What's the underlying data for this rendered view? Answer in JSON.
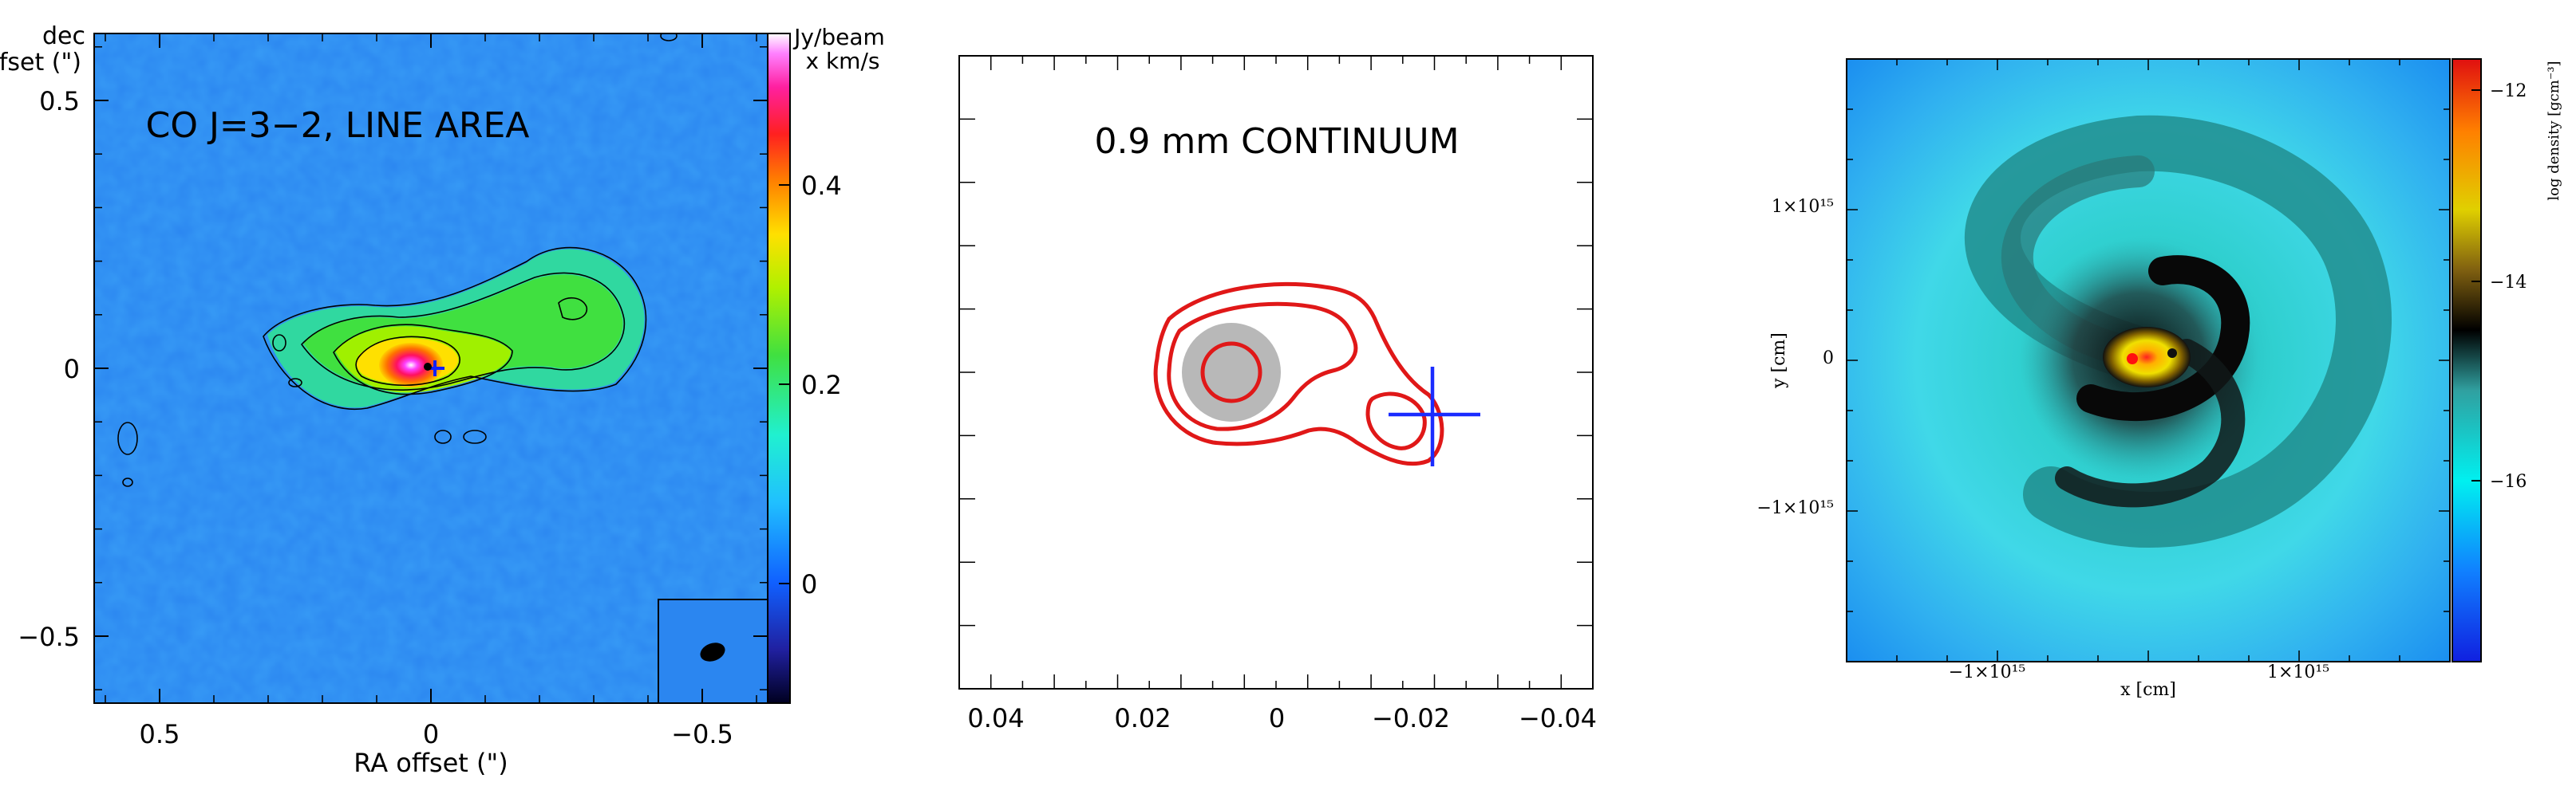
{
  "panels": {
    "left": {
      "title": "CO J=3−2, LINE AREA",
      "ylabel_line1": "dec",
      "ylabel_line2": "offset (\")",
      "xlabel": "RA offset (\")",
      "colorbar_label_line1": "Jy/beam",
      "colorbar_label_line2": "x km/s"
    },
    "middle": {
      "title": "0.9 mm CONTINUUM"
    },
    "right": {
      "xlabel": "x  [cm]",
      "ylabel": "y  [cm]",
      "colorbar_label": "log density [gcm⁻³]"
    }
  },
  "chart_data": [
    {
      "type": "heatmap",
      "title": "CO J=3−2, LINE AREA",
      "xlabel": "RA offset (\")",
      "ylabel": "dec offset (\")",
      "xlim": [
        0.63,
        -0.63
      ],
      "ylim": [
        -0.63,
        0.63
      ],
      "xticks": [
        0.5,
        0,
        -0.5
      ],
      "xtick_labels": [
        "0.5",
        "0",
        "−0.5"
      ],
      "yticks": [
        0.5,
        0,
        -0.5
      ],
      "ytick_labels": [
        "0.5",
        "0",
        "−0.5"
      ],
      "colorbar": {
        "label": "Jy/beam x km/s",
        "range": [
          -0.1,
          0.5
        ],
        "ticks": [
          0.4,
          0.2,
          0
        ],
        "tick_labels": [
          "0.4",
          "0.2",
          "0"
        ]
      },
      "features": [
        {
          "name": "emission peak",
          "x": 0.0,
          "y": 0.0,
          "peak_value": 0.45
        },
        {
          "name": "extended lobe",
          "x": -0.25,
          "y": 0.05,
          "value": 0.18
        }
      ],
      "contours": "black contours tracing emission, elongated east-west",
      "beam": "filled ellipse, lower-right corner"
    },
    {
      "type": "scatter",
      "title": "0.9 mm CONTINUUM",
      "xlim": [
        0.05,
        -0.05
      ],
      "ylim": [
        -0.05,
        0.05
      ],
      "xticks": [
        0.04,
        0.02,
        0,
        -0.02,
        -0.04
      ],
      "xtick_labels": [
        "0.04",
        "0.02",
        "0",
        "−0.02",
        "−0.04"
      ],
      "points": [
        {
          "name": "continuum peak",
          "x": 0.006,
          "y": 0.0
        },
        {
          "name": "secondary source (cross)",
          "x": -0.025,
          "y": -0.007
        }
      ],
      "contour_levels": 3,
      "contour_color": "#e01818",
      "filled_core": "gray disk at continuum peak"
    },
    {
      "type": "heatmap",
      "xlabel": "x  [cm]",
      "ylabel": "y  [cm]",
      "xlim": [
        -1700000000000000.0,
        1700000000000000.0
      ],
      "ylim": [
        -1700000000000000.0,
        1700000000000000.0
      ],
      "xticks": [
        -1000000000000000.0,
        1000000000000000.0
      ],
      "xtick_labels": [
        "−1×10¹⁵",
        "1×10¹⁵"
      ],
      "yticks": [
        1000000000000000.0,
        0,
        -1000000000000000.0
      ],
      "ytick_labels": [
        "1×10¹⁵",
        "0",
        "−1×10¹⁵"
      ],
      "colorbar": {
        "label": "log density [gcm⁻³]",
        "range": [
          -17.5,
          -11.5
        ],
        "ticks": [
          -12,
          -14,
          -16
        ],
        "tick_labels": [
          "−12",
          "−14",
          "−16"
        ]
      },
      "features": [
        {
          "name": "dense core",
          "x": 0.0,
          "y": 0.0,
          "log_density": -12.5
        },
        {
          "name": "spiral arm",
          "description": "dark dense spiral wrapping around core"
        }
      ]
    }
  ]
}
